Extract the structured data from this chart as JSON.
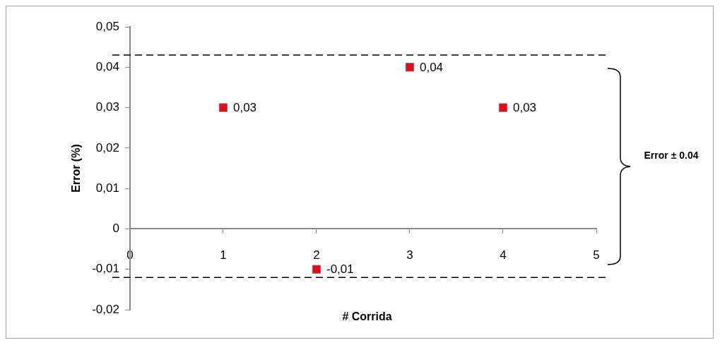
{
  "chart_data": {
    "type": "scatter",
    "xlabel": "# Corrida",
    "ylabel": "Error (%)",
    "x": [
      1,
      2,
      3,
      4
    ],
    "series": [
      {
        "color": "#ff0000",
        "values": [
          0.03,
          -0.01,
          0.04,
          0.03
        ],
        "value_labels": [
          "0,03",
          "-0,01",
          "0,04",
          "0,03"
        ]
      }
    ],
    "marker": "square",
    "legend": false,
    "grid": false,
    "xlim": [
      0,
      5
    ],
    "xticks": [
      0,
      1,
      2,
      3,
      4,
      5
    ],
    "ylim": [
      -0.02,
      0.05
    ],
    "yticks": [
      {
        "value": -0.02,
        "label": "-0,02"
      },
      {
        "value": -0.01,
        "label": "-0,01"
      },
      {
        "value": 0,
        "label": "0"
      },
      {
        "value": 0.01,
        "label": "0,01"
      },
      {
        "value": 0.02,
        "label": "0,02"
      },
      {
        "value": 0.03,
        "label": "0,03"
      },
      {
        "value": 0.04,
        "label": "0,04"
      },
      {
        "value": 0.05,
        "label": "0,05"
      }
    ],
    "ref_lines": [
      {
        "axis": "y",
        "value": 0.043,
        "color": "#000000",
        "line_style": "dashed"
      },
      {
        "axis": "y",
        "value": -0.012,
        "color": "#000000",
        "line_style": "dashed"
      }
    ],
    "annotations": [
      "Error ± 0.04"
    ]
  }
}
